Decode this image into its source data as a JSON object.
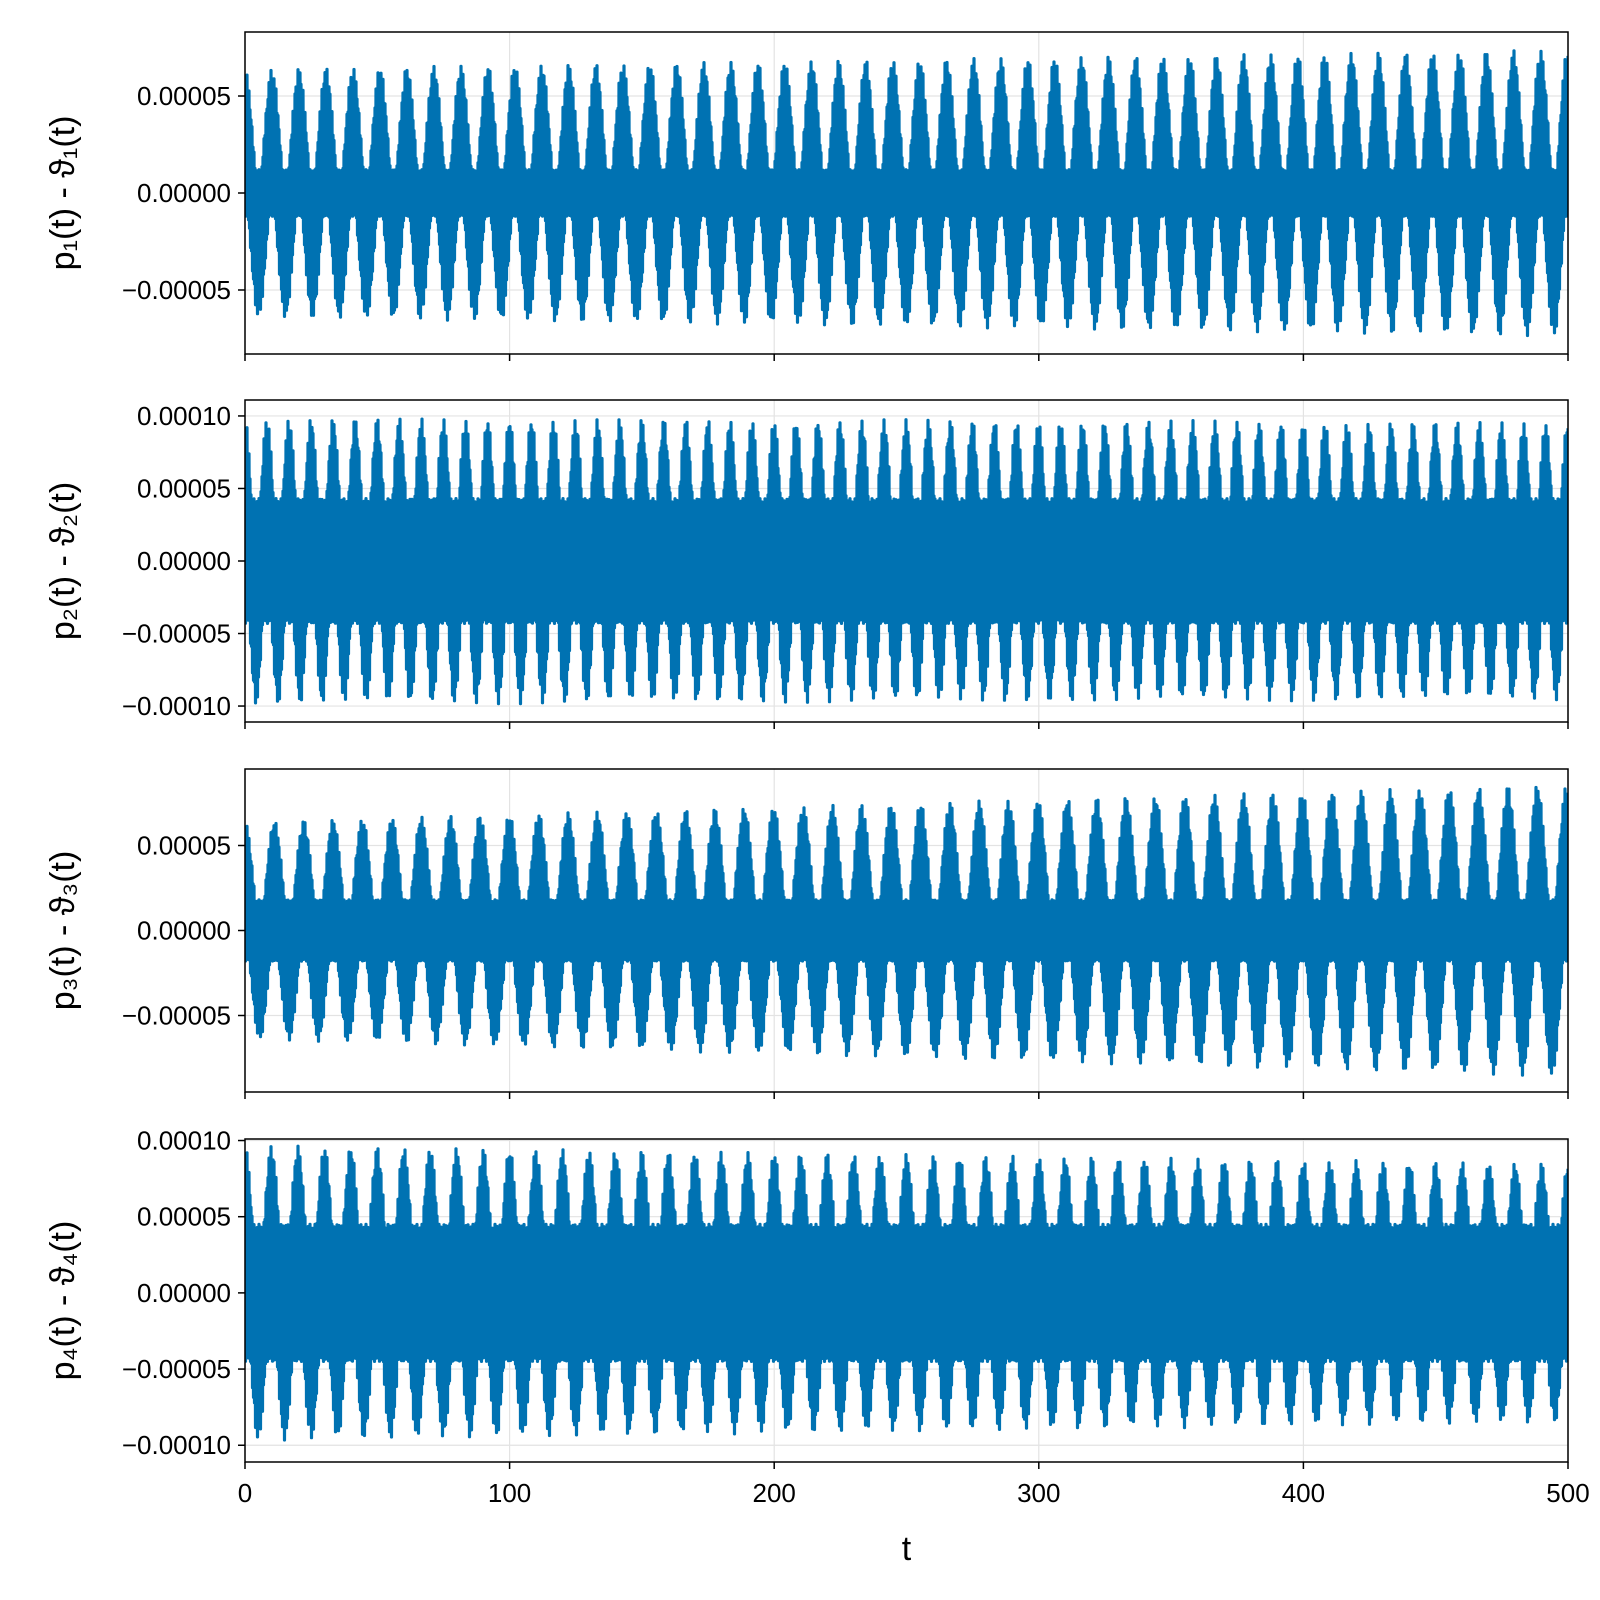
{
  "chart_data": [
    {
      "type": "line",
      "ylabel": "p₁(t) - ϑ₁(t)",
      "xlabel": "",
      "xlim": [
        0,
        500
      ],
      "ylim": [
        -8.3e-05,
        8.3e-05
      ],
      "xticks": [
        0,
        100,
        200,
        300,
        400,
        500
      ],
      "xtick_labels": [
        "",
        "",
        "",
        "",
        "",
        ""
      ],
      "yticks": [
        -5e-05,
        0,
        5e-05
      ],
      "ytick_labels": [
        "−0.00005",
        "0.00000",
        "0.00005"
      ],
      "grid": true,
      "series": [
        {
          "color": "#0072b2",
          "envelope": {
            "period": 10.2,
            "amp_start": 6.4e-05,
            "amp_end": 7.4e-05,
            "core": 1.2e-05,
            "phase": 0
          }
        }
      ]
    },
    {
      "type": "line",
      "ylabel": "p₂(t) - ϑ₂(t)",
      "xlabel": "",
      "xlim": [
        0,
        500
      ],
      "ylim": [
        -0.000111,
        0.000111
      ],
      "xticks": [
        0,
        100,
        200,
        300,
        400,
        500
      ],
      "xtick_labels": [
        "",
        "",
        "",
        "",
        "",
        ""
      ],
      "yticks": [
        -0.0001,
        -5e-05,
        0,
        5e-05,
        0.0001
      ],
      "ytick_labels": [
        "−0.00010",
        "−0.00005",
        "0.00000",
        "0.00005",
        "0.00010"
      ],
      "grid": true,
      "series": [
        {
          "color": "#0072b2",
          "envelope": {
            "period": 8.33,
            "amp_start": 9.9e-05,
            "amp_end": 9.6e-05,
            "core": 4.3e-05,
            "phase": 0
          }
        }
      ]
    },
    {
      "type": "line",
      "ylabel": "p₃(t) - ϑ₃(t)",
      "xlabel": "",
      "xlim": [
        0,
        500
      ],
      "ylim": [
        -9.5e-05,
        9.5e-05
      ],
      "xticks": [
        0,
        100,
        200,
        300,
        400,
        500
      ],
      "xtick_labels": [
        "",
        "",
        "",
        "",
        "",
        ""
      ],
      "yticks": [
        -5e-05,
        0,
        5e-05
      ],
      "ytick_labels": [
        "−0.00005",
        "0.00000",
        "0.00005"
      ],
      "grid": true,
      "series": [
        {
          "color": "#0072b2",
          "envelope": {
            "period": 11.1,
            "amp_start": 6.4e-05,
            "amp_end": 8.6e-05,
            "core": 1.8e-05,
            "phase": 0
          }
        }
      ]
    },
    {
      "type": "line",
      "ylabel": "p₄(t) - ϑ₄(t)",
      "xlabel": "t",
      "xlim": [
        0,
        500
      ],
      "ylim": [
        -0.000111,
        0.000101
      ],
      "xticks": [
        0,
        100,
        200,
        300,
        400,
        500
      ],
      "xtick_labels": [
        "0",
        "100",
        "200",
        "300",
        "400",
        "500"
      ],
      "yticks": [
        -0.0001,
        -5e-05,
        0,
        5e-05,
        0.0001
      ],
      "ytick_labels": [
        "−0.00010",
        "−0.00005",
        "0.00000",
        "0.00005",
        "0.00010"
      ],
      "grid": true,
      "series": [
        {
          "color": "#0072b2",
          "envelope": {
            "period": 10.0,
            "amp_start": 9.7e-05,
            "amp_end": 8.5e-05,
            "core": 4.5e-05,
            "phase": 0
          }
        }
      ]
    }
  ]
}
